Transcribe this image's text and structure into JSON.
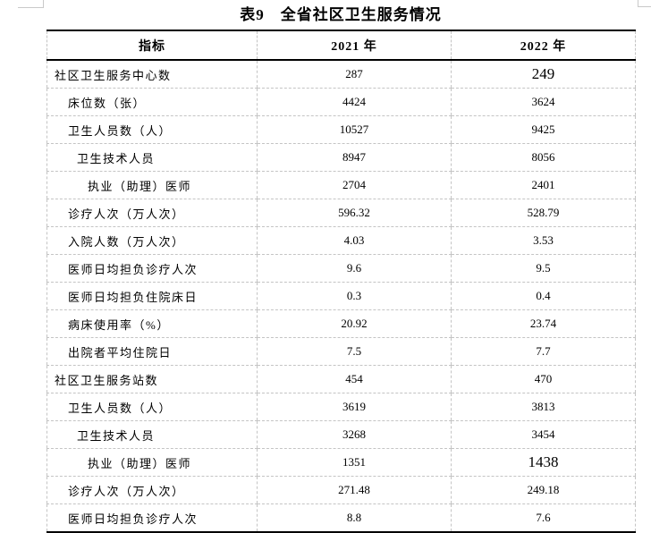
{
  "title": "表9　全省社区卫生服务情况",
  "table": {
    "columns": {
      "indicator": "指标",
      "year_2021": "2021 年",
      "year_2022": "2022 年"
    },
    "rows": [
      {
        "indicator": "社区卫生服务中心数",
        "indent": 0,
        "v2021": "287",
        "v2022": "249",
        "v2022_large": true
      },
      {
        "indicator": "床位数（张）",
        "indent": 1,
        "v2021": "4424",
        "v2022": "3624"
      },
      {
        "indicator": "卫生人员数（人）",
        "indent": 1,
        "v2021": "10527",
        "v2022": "9425"
      },
      {
        "indicator": "卫生技术人员",
        "indent": 2,
        "v2021": "8947",
        "v2022": "8056"
      },
      {
        "indicator": "执业（助理）医师",
        "indent": 3,
        "v2021": "2704",
        "v2022": "2401"
      },
      {
        "indicator": "诊疗人次（万人次）",
        "indent": 1,
        "v2021": "596.32",
        "v2022": "528.79"
      },
      {
        "indicator": "入院人数（万人次）",
        "indent": 1,
        "v2021": "4.03",
        "v2022": "3.53"
      },
      {
        "indicator": "医师日均担负诊疗人次",
        "indent": 1,
        "v2021": "9.6",
        "v2022": "9.5"
      },
      {
        "indicator": "医师日均担负住院床日",
        "indent": 1,
        "v2021": "0.3",
        "v2022": "0.4"
      },
      {
        "indicator": "病床使用率（%）",
        "indent": 1,
        "v2021": "20.92",
        "v2022": "23.74"
      },
      {
        "indicator": "出院者平均住院日",
        "indent": 1,
        "v2021": "7.5",
        "v2022": "7.7"
      },
      {
        "indicator": "社区卫生服务站数",
        "indent": 0,
        "v2021": "454",
        "v2022": "470"
      },
      {
        "indicator": "卫生人员数（人）",
        "indent": 1,
        "v2021": "3619",
        "v2022": "3813"
      },
      {
        "indicator": "卫生技术人员",
        "indent": 2,
        "v2021": "3268",
        "v2022": "3454"
      },
      {
        "indicator": "执业（助理）医师",
        "indent": 3,
        "v2021": "1351",
        "v2022": "1438",
        "v2022_large": true
      },
      {
        "indicator": "诊疗人次（万人次）",
        "indent": 1,
        "v2021": "271.48",
        "v2022": "249.18"
      },
      {
        "indicator": "医师日均担负诊疗人次",
        "indent": 1,
        "v2021": "8.8",
        "v2022": "7.6"
      }
    ]
  }
}
